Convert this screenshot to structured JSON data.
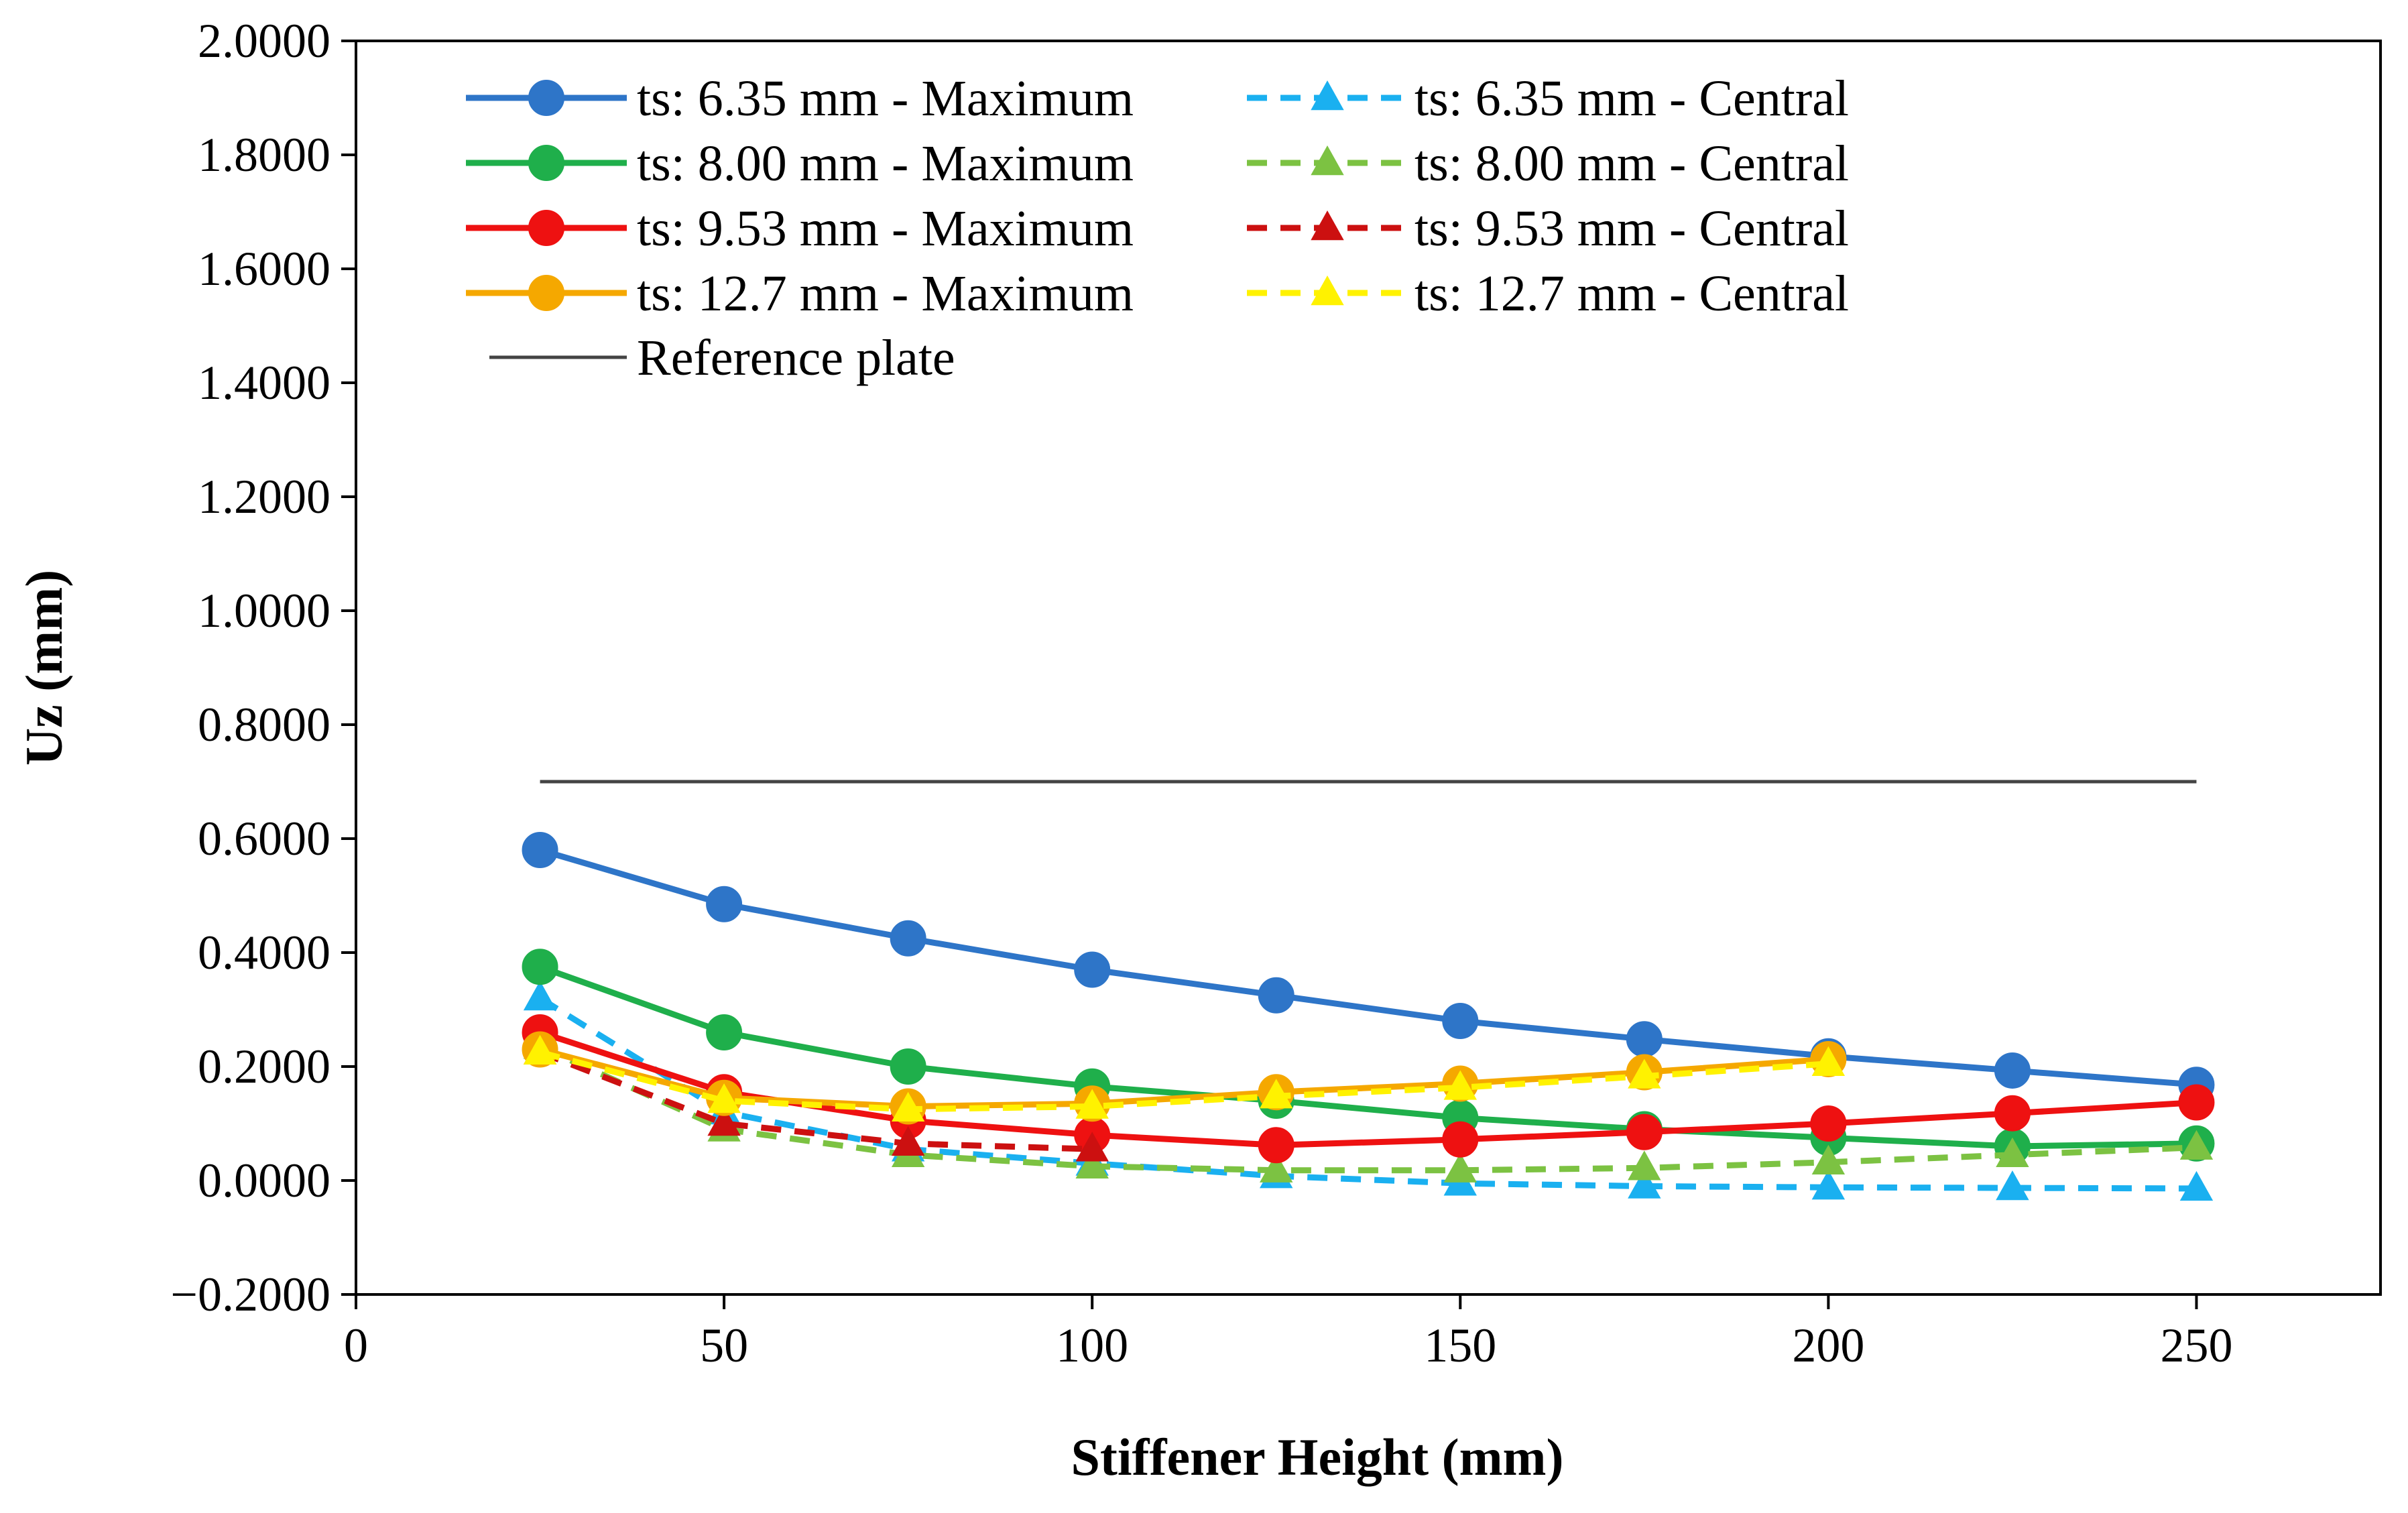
{
  "chart_data": {
    "type": "line",
    "title": "",
    "xlabel": "Stiffener Height (mm)",
    "ylabel": "Uz (mm)",
    "xlim": [
      0,
      275
    ],
    "ylim": [
      -0.2,
      2.0
    ],
    "xticks": [
      0,
      50,
      100,
      150,
      200,
      250
    ],
    "xtick_labels": [
      "0",
      "50",
      "100",
      "150",
      "200",
      "250"
    ],
    "yticks": [
      -0.2,
      0.0,
      0.2,
      0.4,
      0.6,
      0.8,
      1.0,
      1.2,
      1.4,
      1.6,
      1.8,
      2.0
    ],
    "ytick_labels": [
      "−0.2000",
      "0.0000",
      "0.2000",
      "0.4000",
      "0.6000",
      "0.8000",
      "1.0000",
      "1.2000",
      "1.4000",
      "1.6000",
      "1.8000",
      "2.0000"
    ],
    "grid": false,
    "legend_position": "top-left",
    "series": [
      {
        "name": "ts: 6.35 mm - Maximum",
        "color": "#2E75C8",
        "marker": "circle",
        "dash": "solid",
        "x": [
          25,
          50,
          75,
          100,
          125,
          150,
          175,
          200,
          225,
          250
        ],
        "y": [
          0.58,
          0.485,
          0.425,
          0.37,
          0.325,
          0.28,
          0.248,
          0.218,
          0.193,
          0.168
        ]
      },
      {
        "name": "ts: 6.35 mm - Central",
        "color": "#1AB0F0",
        "marker": "triangle",
        "dash": "dashed",
        "x": [
          25,
          50,
          75,
          100,
          125,
          150,
          175,
          200,
          225,
          250
        ],
        "y": [
          0.32,
          0.12,
          0.055,
          0.03,
          0.008,
          -0.005,
          -0.01,
          -0.012,
          -0.013,
          -0.014
        ]
      },
      {
        "name": "ts: 8.00 mm - Maximum",
        "color": "#1FAF4B",
        "marker": "circle",
        "dash": "solid",
        "x": [
          25,
          50,
          75,
          100,
          125,
          150,
          175,
          200,
          225,
          250
        ],
        "y": [
          0.375,
          0.26,
          0.2,
          0.165,
          0.14,
          0.11,
          0.09,
          0.075,
          0.06,
          0.065
        ]
      },
      {
        "name": "ts: 8.00 mm - Central",
        "color": "#7CC242",
        "marker": "triangle",
        "dash": "dashed",
        "x": [
          25,
          50,
          75,
          100,
          125,
          150,
          175,
          200,
          225,
          250
        ],
        "y": [
          0.235,
          0.09,
          0.045,
          0.025,
          0.018,
          0.018,
          0.022,
          0.032,
          0.045,
          0.058
        ]
      },
      {
        "name": "ts: 9.53 mm - Maximum",
        "color": "#EE1111",
        "marker": "circle",
        "dash": "solid",
        "x": [
          25,
          50,
          75,
          100,
          125,
          150,
          175,
          200,
          225,
          250
        ],
        "y": [
          0.26,
          0.155,
          0.105,
          0.08,
          0.062,
          0.072,
          0.085,
          0.1,
          0.118,
          0.137
        ]
      },
      {
        "name": "ts: 9.53 mm - Central",
        "color": "#CC1010",
        "marker": "triangle",
        "dash": "dashed",
        "x": [
          25,
          50,
          75,
          100
        ],
        "y": [
          0.225,
          0.1,
          0.065,
          0.055
        ]
      },
      {
        "name": "ts: 12.7 mm - Maximum",
        "color": "#F5A800",
        "marker": "circle",
        "dash": "solid",
        "x": [
          25,
          50,
          75,
          100,
          125,
          150,
          175,
          200
        ],
        "y": [
          0.23,
          0.145,
          0.13,
          0.135,
          0.155,
          0.17,
          0.19,
          0.213
        ]
      },
      {
        "name": "ts: 12.7 mm - Central",
        "color": "#FFF200",
        "marker": "triangle",
        "dash": "dashed",
        "x": [
          25,
          50,
          75,
          100,
          125,
          150,
          175,
          200
        ],
        "y": [
          0.225,
          0.14,
          0.125,
          0.13,
          0.148,
          0.163,
          0.183,
          0.205
        ]
      },
      {
        "name": "Reference plate",
        "color": "#444444",
        "marker": "none",
        "dash": "solid",
        "x": [
          25,
          250
        ],
        "y": [
          0.7,
          0.7
        ]
      }
    ]
  }
}
